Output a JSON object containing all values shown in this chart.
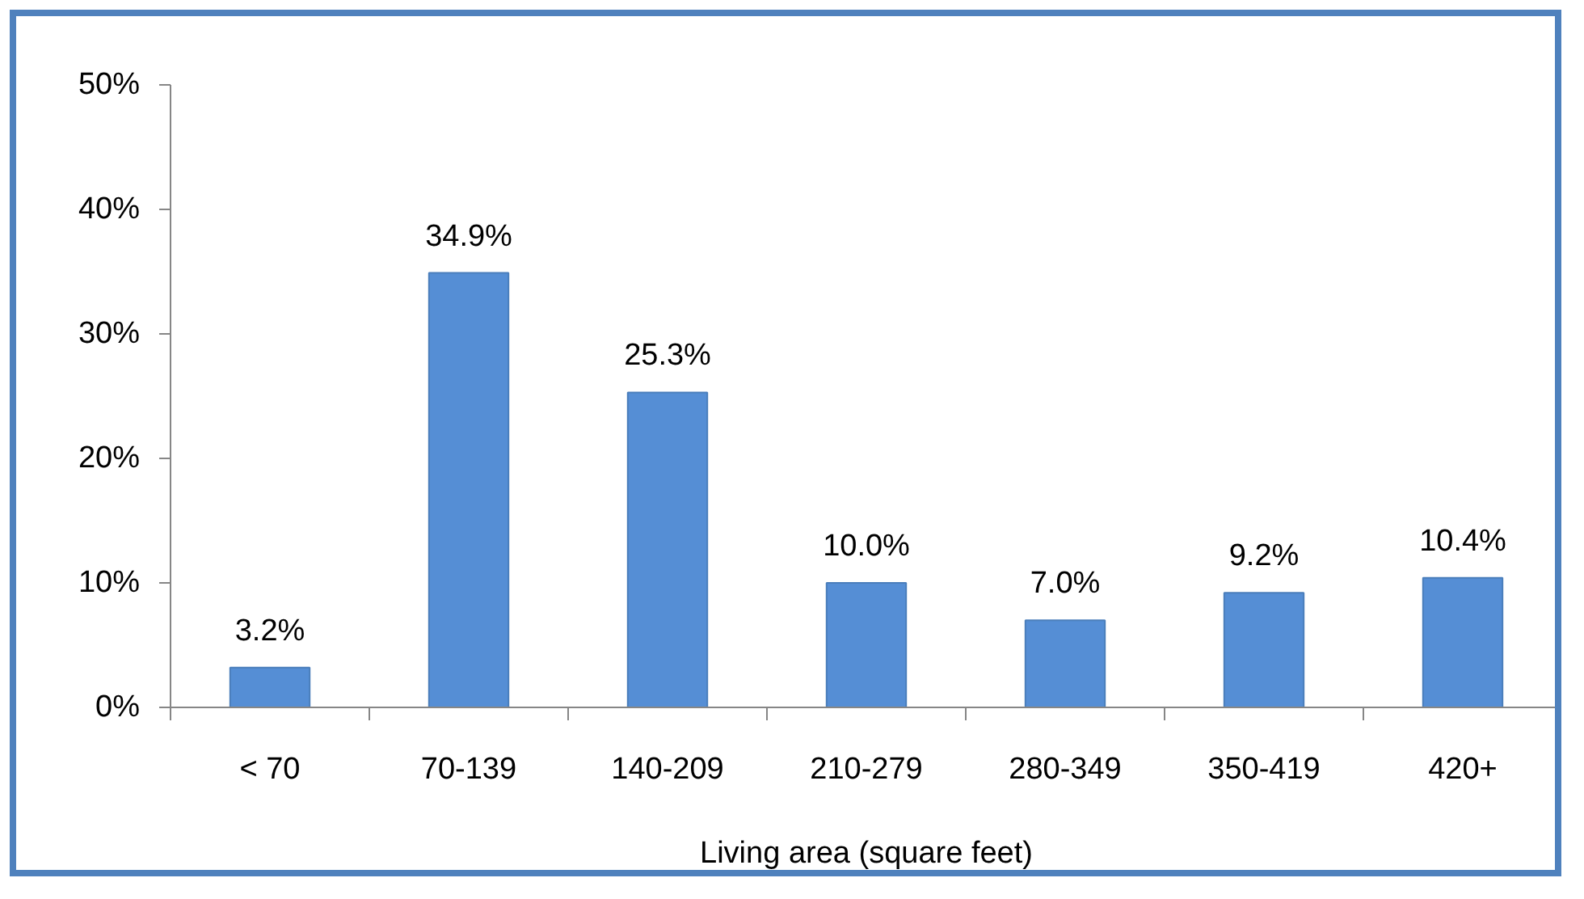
{
  "chart_data": {
    "type": "bar",
    "xlabel": "Living area (square feet)",
    "categories": [
      "< 70",
      "70-139",
      "140-209",
      "210-279",
      "280-349",
      "350-419",
      "420+"
    ],
    "values": [
      3.2,
      34.9,
      25.3,
      10.0,
      7.0,
      9.2,
      10.4
    ],
    "value_labels": [
      "3.2%",
      "34.9%",
      "25.3%",
      "10.0%",
      "7.0%",
      "9.2%",
      "10.4%"
    ],
    "color": "#558ed5",
    "ylim": [
      0,
      50
    ],
    "yticks": [
      {
        "value": 0,
        "label": "0%"
      },
      {
        "value": 10,
        "label": "10%"
      },
      {
        "value": 20,
        "label": "20%"
      },
      {
        "value": 30,
        "label": "30%"
      },
      {
        "value": 40,
        "label": "40%"
      },
      {
        "value": 50,
        "label": "50%"
      }
    ],
    "grid": false
  }
}
